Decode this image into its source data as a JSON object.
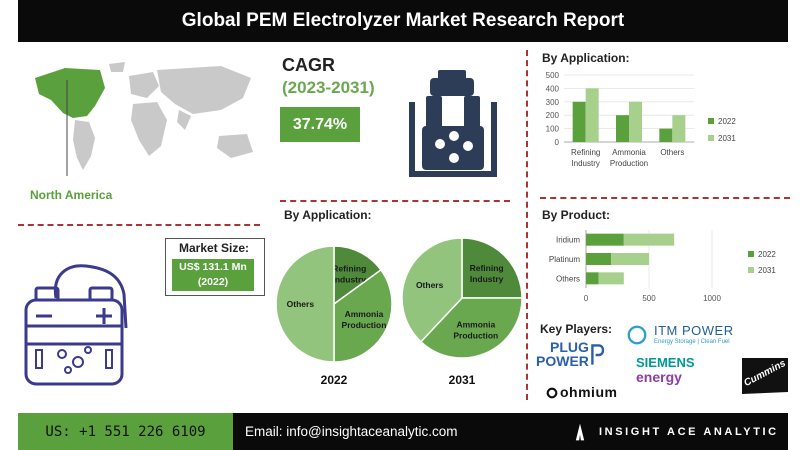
{
  "header": {
    "title": "Global PEM Electrolyzer Market Research Report"
  },
  "region": {
    "label": "North America"
  },
  "cagr": {
    "title": "CAGR",
    "period": "(2023-2031)",
    "value": "37.74%"
  },
  "market_size": {
    "label": "Market Size:",
    "value_line1": "US$ 131.1 Mn",
    "value_line2": "(2022)"
  },
  "pie_section": {
    "title": "By Application:"
  },
  "bar_app_section": {
    "title": "By Application:"
  },
  "bar_prod_section": {
    "title": "By Product:"
  },
  "key_players": {
    "title": "Key Players:",
    "plug_line1": "PLUG",
    "plug_line2": "POWER",
    "itm_name": "ITM POWER",
    "itm_tag": "Energy Storage | Clean Fuel",
    "siemens_line1": "SIEMENS",
    "siemens_line2": "energy",
    "cummins": "Cummins",
    "ohmium": "ohmium"
  },
  "footer": {
    "phone": "US: +1 551 226 6109",
    "email": "Email: info@insightaceanalytic.com",
    "brand": "INSIGHT ACE ANALYTIC"
  },
  "colors": {
    "dark_green": "#5aa03c",
    "light_green": "#a8d08d",
    "pie_green": "#6aa84f",
    "pie_dark": "#4e8a3a",
    "pie_light": "#93c47d",
    "icon_navy": "#2e3d57",
    "battery_purple": "#3b3a8c"
  },
  "chart_data": [
    {
      "type": "pie",
      "title": "2022",
      "slices": [
        {
          "label": "Others",
          "value": 50
        },
        {
          "label": "Ammonia Production",
          "value": 35
        },
        {
          "label": "Refining Industry",
          "value": 15
        }
      ]
    },
    {
      "type": "pie",
      "title": "2031",
      "slices": [
        {
          "label": "Others",
          "value": 38
        },
        {
          "label": "Ammonia Production",
          "value": 37
        },
        {
          "label": "Refining Industry",
          "value": 25
        }
      ]
    },
    {
      "type": "bar",
      "orientation": "vertical",
      "categories": [
        "Refining Industry",
        "Ammonia Production",
        "Others"
      ],
      "series": [
        {
          "name": "2022",
          "values": [
            300,
            200,
            100
          ]
        },
        {
          "name": "2031",
          "values": [
            400,
            300,
            200
          ]
        }
      ],
      "ylim": [
        0,
        500
      ],
      "yticks": [
        0,
        100,
        200,
        300,
        400,
        500
      ],
      "legend": "right"
    },
    {
      "type": "bar",
      "orientation": "horizontal",
      "stacked": true,
      "categories": [
        "Iridium",
        "Platinum",
        "Others"
      ],
      "series": [
        {
          "name": "2022",
          "values": [
            300,
            200,
            100
          ]
        },
        {
          "name": "2031",
          "values": [
            400,
            300,
            200
          ]
        }
      ],
      "xlim": [
        0,
        1000
      ],
      "xticks": [
        0,
        500,
        1000
      ],
      "legend": "right"
    }
  ]
}
